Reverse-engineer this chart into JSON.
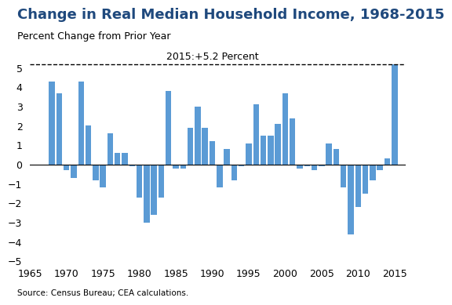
{
  "title": "Change in Real Median Household Income, 1968-2015",
  "ylabel_subtitle": "Percent Change from Prior Year",
  "source": "Source: Census Bureau; CEA calculations.",
  "annotation": "2015:+5.2 Percent",
  "dashed_line_value": 5.2,
  "ylim": [
    -5,
    6
  ],
  "yticks": [
    -5,
    -4,
    -3,
    -2,
    -1,
    0,
    1,
    2,
    3,
    4,
    5,
    6
  ],
  "bar_color": "#5B9BD5",
  "years": [
    1968,
    1969,
    1970,
    1971,
    1972,
    1973,
    1974,
    1975,
    1976,
    1977,
    1978,
    1979,
    1980,
    1981,
    1982,
    1983,
    1984,
    1985,
    1986,
    1987,
    1988,
    1989,
    1990,
    1991,
    1992,
    1993,
    1994,
    1995,
    1996,
    1997,
    1998,
    1999,
    2000,
    2001,
    2002,
    2003,
    2004,
    2005,
    2006,
    2007,
    2008,
    2009,
    2010,
    2011,
    2012,
    2013,
    2014,
    2015
  ],
  "values": [
    4.3,
    3.7,
    -0.3,
    -0.7,
    4.3,
    2.0,
    -0.8,
    -1.2,
    1.6,
    0.6,
    0.6,
    -0.1,
    -1.7,
    -3.0,
    -2.6,
    -1.7,
    3.8,
    -0.2,
    -0.2,
    1.9,
    3.0,
    1.9,
    1.2,
    -1.2,
    0.8,
    -0.8,
    -0.1,
    1.1,
    3.1,
    1.5,
    1.5,
    2.1,
    3.7,
    2.4,
    -0.2,
    -0.1,
    -0.3,
    -0.1,
    1.1,
    0.8,
    -1.2,
    -3.6,
    -2.2,
    -1.5,
    -0.8,
    -0.3,
    0.3,
    5.2
  ],
  "title_color": "#1F497D",
  "title_fontsize": 13,
  "subtitle_fontsize": 9,
  "annotation_fontsize": 9,
  "tick_fontsize": 9,
  "source_fontsize": 7.5,
  "xticks": [
    1965,
    1970,
    1975,
    1980,
    1985,
    1990,
    1995,
    2000,
    2005,
    2010,
    2015
  ],
  "xlim": [
    1965,
    2016.5
  ]
}
